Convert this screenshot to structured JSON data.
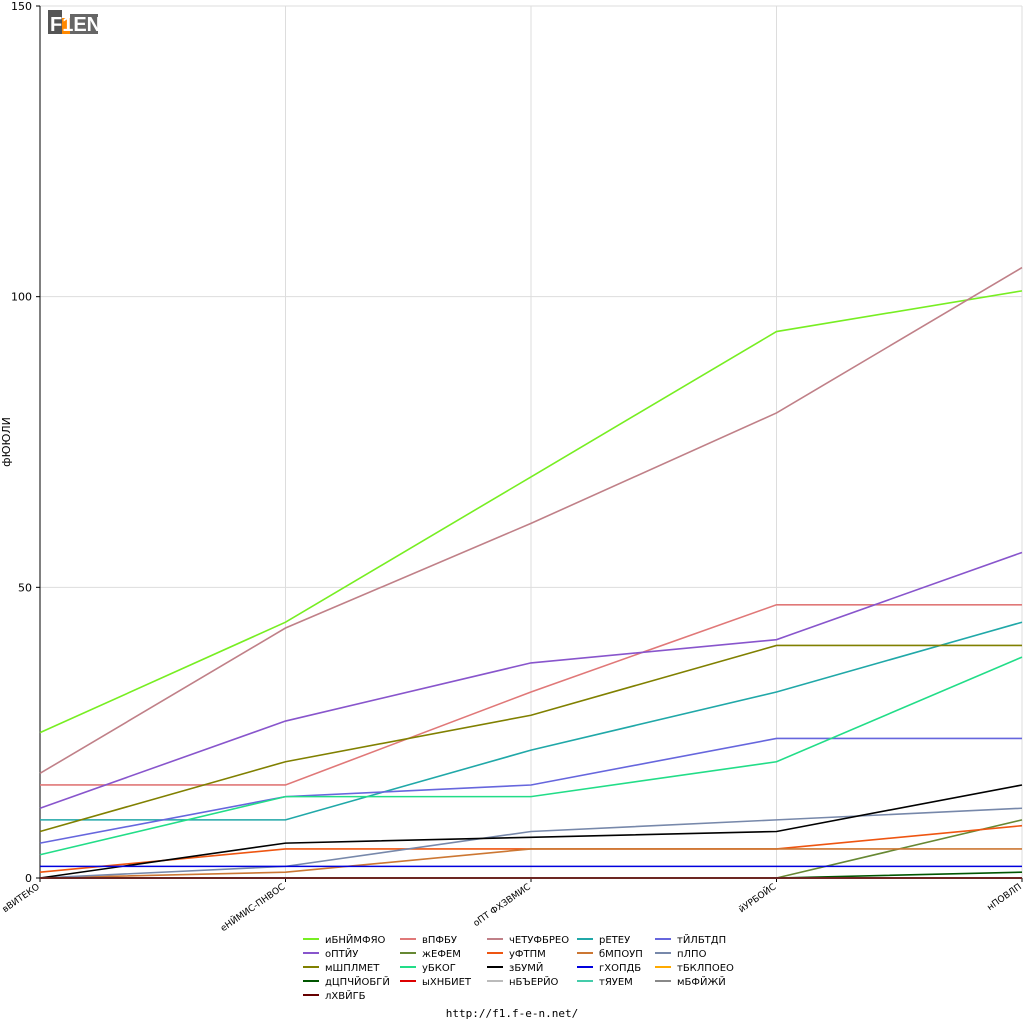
{
  "logo_text": "F1EN",
  "footer_text": "http://f1.f-e-n.net/",
  "chart_data": {
    "type": "line",
    "ylabel": "фЮЮЛИ",
    "xlabel": "",
    "ylim": [
      0,
      150
    ],
    "yticks": [
      0,
      50,
      100,
      150
    ],
    "grid": true,
    "legend_position": "bottom",
    "categories": [
      "вВИТЕКО",
      "еНЙМИС-ПНВОС",
      "оПТ ФХЗВМИС",
      "йУРБОЙС",
      "нПОВЛП"
    ],
    "series": [
      {
        "name": "иБНЙМФЯО",
        "color": "#77ee22",
        "values": [
          25,
          44,
          69,
          94,
          101
        ]
      },
      {
        "name": "вПФБУ",
        "color": "#e07878",
        "values": [
          16,
          16,
          32,
          47,
          47
        ]
      },
      {
        "name": "чЕТУФБРЕО",
        "color": "#c08088",
        "values": [
          18,
          43,
          61,
          80,
          105
        ]
      },
      {
        "name": "рЕТЕУ",
        "color": "#20a8a8",
        "values": [
          10,
          10,
          22,
          32,
          44
        ]
      },
      {
        "name": "тЙЛБТДП",
        "color": "#6666dd",
        "values": [
          6,
          14,
          16,
          24,
          24
        ]
      },
      {
        "name": "оПТЙУ",
        "color": "#8855cc",
        "values": [
          12,
          27,
          37,
          41,
          56
        ]
      },
      {
        "name": "жЕФЕМ",
        "color": "#668833",
        "values": [
          0,
          0,
          0,
          0,
          10
        ]
      },
      {
        "name": "уФТПМ",
        "color": "#ee5511",
        "values": [
          1,
          5,
          5,
          5,
          9
        ]
      },
      {
        "name": "бМПОУП",
        "color": "#cc7733",
        "values": [
          0,
          1,
          5,
          5,
          5
        ]
      },
      {
        "name": "пЛПО",
        "color": "#7788aa",
        "values": [
          0,
          2,
          8,
          10,
          12
        ]
      },
      {
        "name": "мШПЛМЕТ",
        "color": "#808000",
        "values": [
          8,
          20,
          28,
          40,
          40
        ]
      },
      {
        "name": "уБКОГ",
        "color": "#22dd88",
        "values": [
          4,
          14,
          14,
          20,
          38
        ]
      },
      {
        "name": "зБУМЙ",
        "color": "#000000",
        "values": [
          0,
          6,
          7,
          8,
          16
        ]
      },
      {
        "name": "гХОПДБ",
        "color": "#0000dd",
        "values": [
          2,
          2,
          2,
          2,
          2
        ]
      },
      {
        "name": "тБКЛПОЕО",
        "color": "#ffaa00",
        "values": [
          0,
          0,
          0,
          0,
          0
        ]
      },
      {
        "name": "дЦПЧЙОБГЙ",
        "color": "#005500",
        "values": [
          0,
          0,
          0,
          0,
          1
        ]
      },
      {
        "name": "ыХНБИЕТ",
        "color": "#dd0000",
        "values": [
          0,
          0,
          0,
          0,
          0
        ]
      },
      {
        "name": "нБЪЕРЙО",
        "color": "#bbbbbb",
        "values": [
          0,
          0,
          0,
          0,
          0
        ]
      },
      {
        "name": "тЯУЕМ",
        "color": "#44ccaa",
        "values": [
          0,
          0,
          0,
          0,
          0
        ]
      },
      {
        "name": "мБФЙЖЙ",
        "color": "#888888",
        "values": [
          0,
          0,
          0,
          0,
          0
        ]
      },
      {
        "name": "лХВЙГБ",
        "color": "#660000",
        "values": [
          0,
          0,
          0,
          0,
          0
        ]
      }
    ]
  }
}
